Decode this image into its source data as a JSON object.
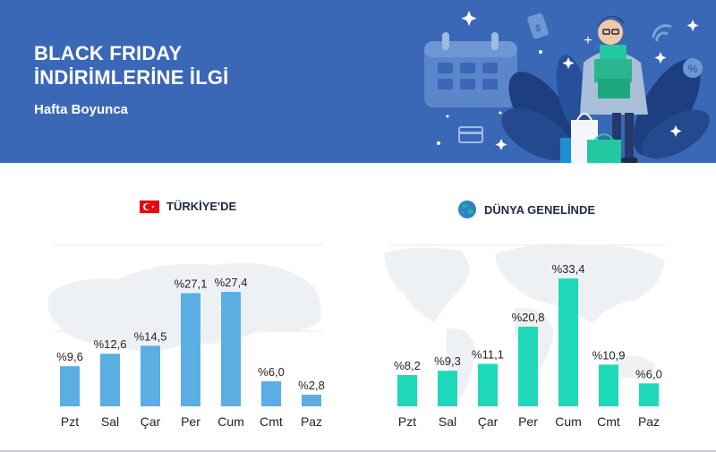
{
  "header": {
    "title_line1": "BLACK FRIDAY",
    "title_line2": "İNDİRİMLERİNE İLGİ",
    "subtitle": "Hafta Boyunca"
  },
  "panels": {
    "turkey": {
      "title": "TÜRKİYE'DE"
    },
    "world": {
      "title": "DÜNYA GENELİNDE"
    }
  },
  "chart_data": [
    {
      "type": "bar",
      "title": "TÜRKİYE'DE",
      "categories": [
        "Pzt",
        "Sal",
        "Çar",
        "Per",
        "Cum",
        "Cmt",
        "Paz"
      ],
      "values": [
        9.6,
        12.6,
        14.5,
        27.1,
        27.4,
        6.0,
        2.8
      ],
      "labels": [
        "%9,6",
        "%12,6",
        "%14,5",
        "%27,1",
        "%27,4",
        "%6,0",
        "%2,8"
      ],
      "highlight_index": 4,
      "color": "#5aaee3",
      "xlabel": "",
      "ylabel": "",
      "ylim": [
        0,
        30
      ],
      "grid": false
    },
    {
      "type": "bar",
      "title": "DÜNYA GENELİNDE",
      "categories": [
        "Pzt",
        "Sal",
        "Çar",
        "Per",
        "Cum",
        "Cmt",
        "Paz"
      ],
      "values": [
        8.2,
        9.3,
        11.1,
        20.8,
        33.4,
        10.9,
        6.0
      ],
      "labels": [
        "%8,2",
        "%9,3",
        "%11,1",
        "%20,8",
        "%33,4",
        "%10,9",
        "%6,0"
      ],
      "highlight_index": 4,
      "color": "#1ed9b9",
      "xlabel": "",
      "ylabel": "",
      "ylim": [
        0,
        35
      ],
      "grid": false
    }
  ]
}
